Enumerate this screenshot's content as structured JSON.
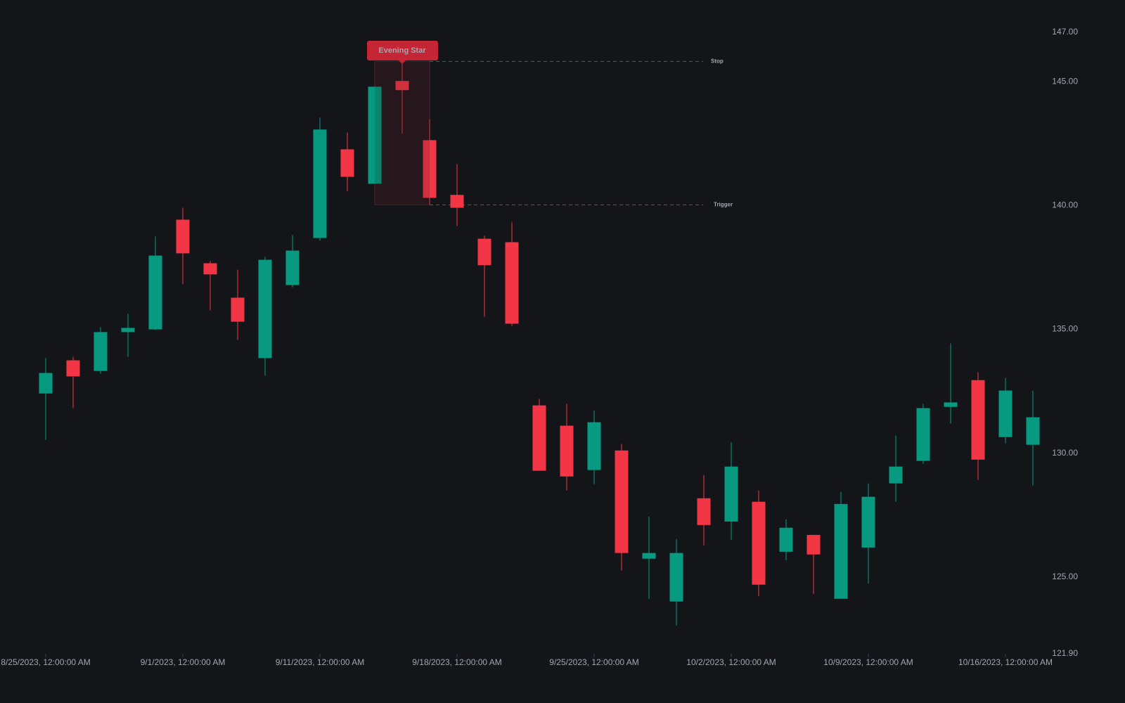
{
  "chart_data": {
    "type": "candlestick",
    "categories": [
      "8/25/2023, 12:00:00 AM",
      null,
      null,
      null,
      null,
      "9/1/2023, 12:00:00 AM",
      null,
      null,
      null,
      null,
      "9/11/2023, 12:00:00 AM",
      null,
      null,
      null,
      null,
      "9/18/2023, 12:00:00 AM",
      null,
      null,
      null,
      null,
      "9/25/2023, 12:00:00 AM",
      null,
      null,
      null,
      null,
      "10/2/2023, 12:00:00 AM",
      null,
      null,
      null,
      null,
      "10/9/2023, 12:00:00 AM",
      null,
      null,
      null,
      null,
      "10/16/2023, 12:00:00 AM",
      null
    ],
    "series": [
      {
        "up_color": "#089981",
        "down_color": "#f23645",
        "open": [
          132.41,
          133.75,
          133.32,
          134.89,
          135.0,
          139.43,
          137.67,
          136.28,
          133.84,
          136.79,
          138.69,
          142.27,
          140.88,
          145.03,
          142.64,
          140.43,
          138.66,
          138.52,
          131.93,
          131.11,
          129.32,
          130.11,
          125.74,
          124.01,
          128.18,
          127.24,
          128.04,
          126.02,
          126.7,
          124.12,
          126.19,
          128.78,
          129.69,
          131.87,
          132.95,
          130.65,
          130.34
        ],
        "high": [
          133.84,
          133.89,
          135.09,
          135.63,
          138.75,
          139.91,
          137.76,
          137.41,
          137.93,
          138.81,
          143.55,
          142.95,
          144.8,
          145.82,
          143.49,
          141.68,
          138.78,
          139.32,
          132.19,
          131.99,
          131.73,
          130.37,
          127.44,
          126.53,
          129.12,
          130.45,
          128.49,
          127.33,
          126.7,
          128.44,
          128.78,
          130.71,
          131.99,
          134.43,
          133.27,
          133.04,
          132.53
        ],
        "low": [
          130.54,
          131.82,
          133.21,
          133.89,
          134.97,
          136.82,
          135.77,
          134.57,
          133.13,
          136.7,
          138.58,
          140.57,
          140.88,
          142.9,
          140.03,
          139.18,
          135.51,
          135.14,
          129.29,
          128.49,
          128.75,
          125.26,
          124.12,
          123.04,
          126.28,
          126.51,
          124.23,
          125.68,
          124.32,
          124.12,
          124.74,
          128.04,
          129.57,
          131.19,
          128.92,
          130.4,
          128.69
        ],
        "close": [
          133.24,
          133.1,
          134.89,
          135.06,
          137.98,
          138.07,
          137.22,
          135.31,
          137.81,
          138.18,
          143.07,
          141.16,
          144.8,
          144.66,
          140.31,
          139.91,
          137.59,
          135.23,
          129.29,
          129.06,
          131.25,
          125.97,
          125.97,
          125.97,
          127.1,
          129.46,
          124.69,
          126.99,
          125.91,
          127.95,
          128.24,
          129.46,
          131.82,
          132.05,
          129.74,
          132.53,
          131.45
        ]
      }
    ],
    "ylim": [
      121.9,
      148.3
    ],
    "yticks": [
      {
        "value": 121.9,
        "label": "121.90"
      },
      {
        "value": 125,
        "label": "125.00"
      },
      {
        "value": 130,
        "label": "130.00"
      },
      {
        "value": 135,
        "label": "135.00"
      },
      {
        "value": 140,
        "label": "140.00"
      },
      {
        "value": 145,
        "label": "145.00"
      },
      {
        "value": 147,
        "label": "147.00"
      }
    ],
    "pattern": {
      "label": "Evening Star",
      "candles": [
        12,
        13,
        14
      ],
      "color": "#f23645"
    },
    "stop": {
      "label": "Stop",
      "value": 145.82,
      "color": "#089981"
    },
    "trigger": {
      "label": "Trigger",
      "value": 140.03,
      "color": "#f23645"
    }
  }
}
